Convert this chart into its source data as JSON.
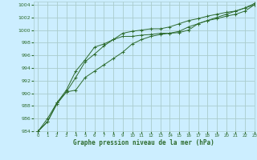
{
  "title": "Graphe pression niveau de la mer (hPa)",
  "background_color": "#cceeff",
  "grid_color": "#aacccc",
  "line_color": "#2d6b2d",
  "xlim": [
    -0.5,
    23
  ],
  "ylim": [
    984,
    1004.5
  ],
  "yticks": [
    984,
    986,
    988,
    990,
    992,
    994,
    996,
    998,
    1000,
    1002,
    1004
  ],
  "xticks": [
    0,
    1,
    2,
    3,
    4,
    5,
    6,
    7,
    8,
    9,
    10,
    11,
    12,
    13,
    14,
    15,
    16,
    17,
    18,
    19,
    20,
    21,
    22,
    23
  ],
  "line1_x": [
    0,
    1,
    2,
    3,
    4,
    5,
    6,
    7,
    8,
    9,
    10,
    11,
    12,
    13,
    14,
    15,
    16,
    17,
    18,
    19,
    20,
    21,
    22,
    23
  ],
  "line1_y": [
    984.0,
    985.5,
    988.3,
    990.2,
    992.5,
    995.0,
    996.2,
    997.5,
    998.5,
    999.0,
    999.0,
    999.2,
    999.3,
    999.5,
    999.5,
    999.6,
    1000.0,
    1001.0,
    1001.5,
    1001.8,
    1002.2,
    1002.5,
    1003.0,
    1004.0
  ],
  "line2_x": [
    0,
    1,
    2,
    3,
    4,
    5,
    6,
    7,
    8,
    9,
    10,
    11,
    12,
    13,
    14,
    15,
    16,
    17,
    18,
    19,
    20,
    21,
    22,
    23
  ],
  "line2_y": [
    984.0,
    985.5,
    988.5,
    990.2,
    990.5,
    992.5,
    993.5,
    994.5,
    995.5,
    996.5,
    997.8,
    998.5,
    999.0,
    999.3,
    999.5,
    999.8,
    1000.5,
    1001.0,
    1001.5,
    1002.0,
    1002.5,
    1003.0,
    1003.5,
    1004.2
  ],
  "line3_x": [
    0,
    1,
    2,
    3,
    4,
    5,
    6,
    7,
    8,
    9,
    10,
    11,
    12,
    13,
    14,
    15,
    16,
    17,
    18,
    19,
    20,
    21,
    22,
    23
  ],
  "line3_y": [
    984.0,
    986.0,
    988.5,
    990.5,
    993.5,
    995.3,
    997.3,
    997.8,
    998.5,
    999.5,
    999.8,
    1000.0,
    1000.2,
    1000.2,
    1000.5,
    1001.0,
    1001.5,
    1001.8,
    1002.2,
    1002.5,
    1002.8,
    1003.0,
    1003.5,
    1004.0
  ]
}
